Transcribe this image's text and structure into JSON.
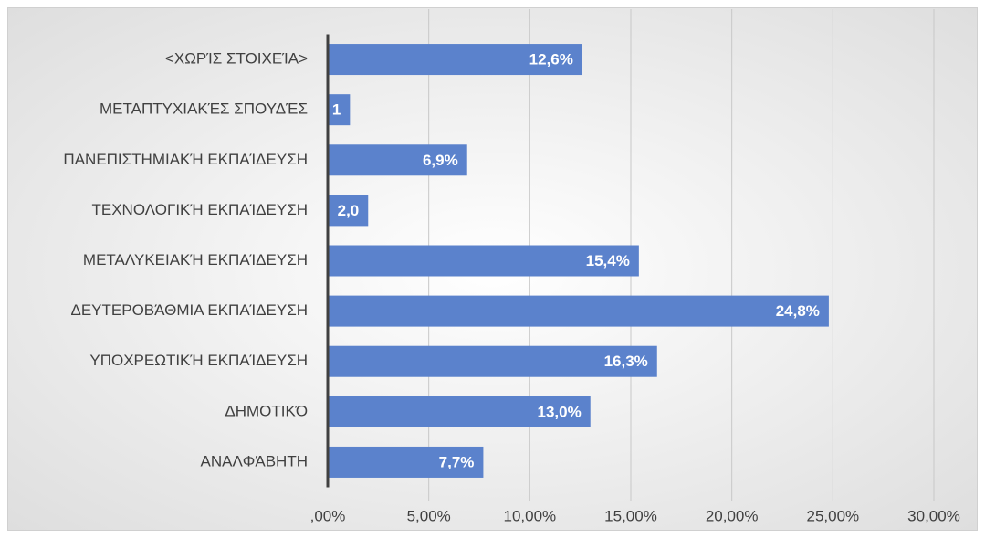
{
  "chart_data": {
    "type": "bar",
    "orientation": "horizontal",
    "categories": [
      "<ΧΩΡΊΣ ΣΤΟΙΧΕΊΑ>",
      "ΜΕΤΑΠΤΥΧΙΑΚΈΣ ΣΠΟΥΔΈΣ",
      "ΠΑΝΕΠΙΣΤΗΜΙΑΚΉ ΕΚΠΑΊΔΕΥΣΗ",
      "ΤΕΧΝΟΛΟΓΙΚΉ ΕΚΠΑΊΔΕΥΣΗ",
      "ΜΕΤΑΛΥΚΕΙΑΚΉ ΕΚΠΑΊΔΕΥΣΗ",
      "ΔΕΥΤΕΡΟΒΆΘΜΙΑ ΕΚΠΑΊΔΕΥΣΗ",
      "ΥΠΟΧΡΕΩΤΙΚΉ ΕΚΠΑΊΔΕΥΣΗ",
      "ΔΗΜΟΤΙΚΌ",
      "ΑΝΑΛΦΆΒΗΤΗ"
    ],
    "values": [
      12.6,
      1.1,
      6.9,
      2.0,
      15.4,
      24.8,
      16.3,
      13.0,
      7.7
    ],
    "value_labels": [
      "12,6%",
      "1",
      "6,9%",
      "2,0",
      "15,4%",
      "24,8%",
      "16,3%",
      "13,0%",
      "7,7%"
    ],
    "color": "#5b82cc",
    "xlim": [
      0,
      30
    ],
    "xticks": [
      {
        "value": 0,
        "label": ",00%"
      },
      {
        "value": 5,
        "label": "5,00%"
      },
      {
        "value": 10,
        "label": "10,00%"
      },
      {
        "value": 15,
        "label": "15,00%"
      },
      {
        "value": 20,
        "label": "20,00%"
      },
      {
        "value": 25,
        "label": "25,00%"
      },
      {
        "value": 30,
        "label": "30,00%"
      }
    ],
    "grid": true
  }
}
